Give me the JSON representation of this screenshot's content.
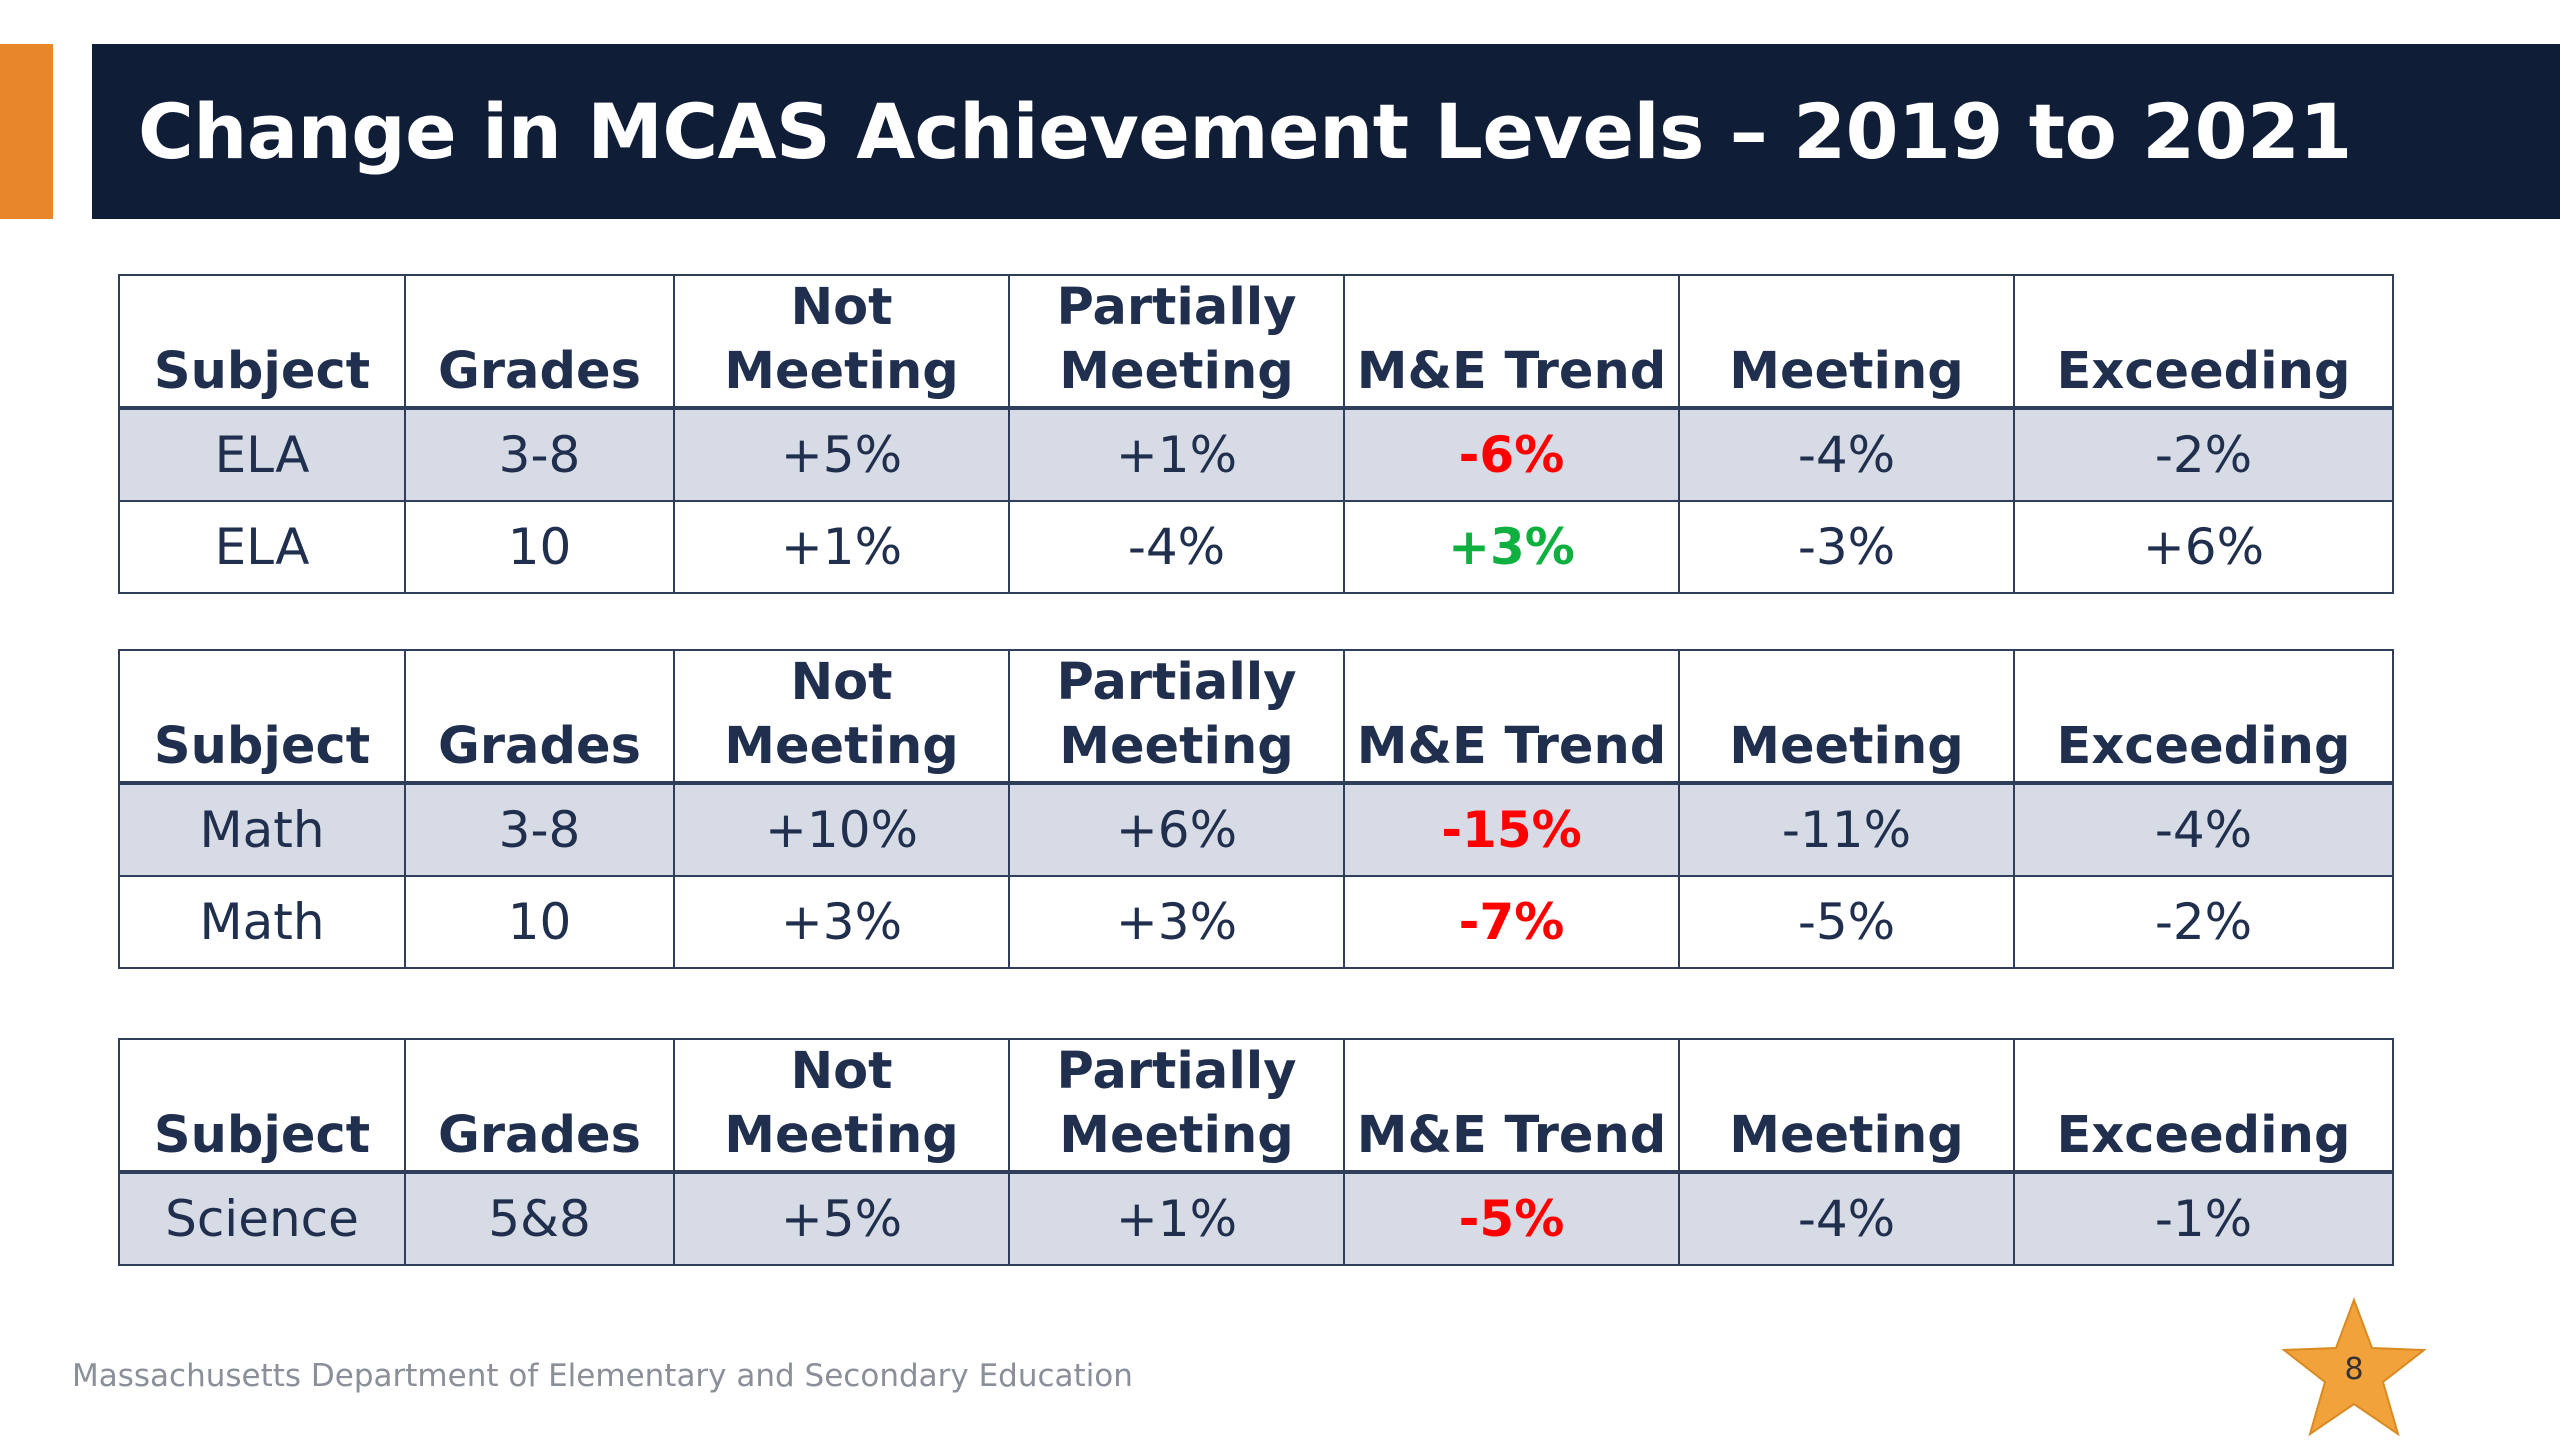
{
  "slide": {
    "title": "Change in MCAS Achievement Levels – 2019 to 2021",
    "footer": "Massachusetts Department of Elementary and Secondary Education",
    "page_number": "8",
    "colors": {
      "title_bar": "#0f1d37",
      "accent": "#e8872a",
      "row_shade": "#d6dbe5",
      "negative": "#ff0000",
      "positive": "#10b040",
      "star": "#f2a23a"
    }
  },
  "tables": [
    {
      "headers": [
        {
          "line1": "",
          "line2": "Subject"
        },
        {
          "line1": "",
          "line2": "Grades"
        },
        {
          "line1": "Not",
          "line2": "Meeting"
        },
        {
          "line1": "Partially",
          "line2": "Meeting"
        },
        {
          "line1": "",
          "line2": "M&E Trend"
        },
        {
          "line1": "",
          "line2": "Meeting"
        },
        {
          "line1": "",
          "line2": "Exceeding"
        }
      ],
      "rows": [
        {
          "subject": "ELA",
          "grades": "3-8",
          "not_meeting": "+5%",
          "partially_meeting": "+1%",
          "me_trend": "-6%",
          "me_trend_status": "negative",
          "meeting": "-4%",
          "exceeding": "-2%"
        },
        {
          "subject": "ELA",
          "grades": "10",
          "not_meeting": "+1%",
          "partially_meeting": "-4%",
          "me_trend": "+3%",
          "me_trend_status": "positive",
          "meeting": "-3%",
          "exceeding": "+6%"
        }
      ]
    },
    {
      "headers": [
        {
          "line1": "",
          "line2": "Subject"
        },
        {
          "line1": "",
          "line2": "Grades"
        },
        {
          "line1": "Not",
          "line2": "Meeting"
        },
        {
          "line1": "Partially",
          "line2": "Meeting"
        },
        {
          "line1": "",
          "line2": "M&E Trend"
        },
        {
          "line1": "",
          "line2": "Meeting"
        },
        {
          "line1": "",
          "line2": "Exceeding"
        }
      ],
      "rows": [
        {
          "subject": "Math",
          "grades": "3-8",
          "not_meeting": "+10%",
          "partially_meeting": "+6%",
          "me_trend": "-15%",
          "me_trend_status": "negative",
          "meeting": "-11%",
          "exceeding": "-4%"
        },
        {
          "subject": "Math",
          "grades": "10",
          "not_meeting": "+3%",
          "partially_meeting": "+3%",
          "me_trend": "-7%",
          "me_trend_status": "negative",
          "meeting": "-5%",
          "exceeding": "-2%"
        }
      ]
    },
    {
      "headers": [
        {
          "line1": "",
          "line2": "Subject"
        },
        {
          "line1": "",
          "line2": "Grades"
        },
        {
          "line1": "Not",
          "line2": "Meeting"
        },
        {
          "line1": "Partially",
          "line2": "Meeting"
        },
        {
          "line1": "",
          "line2": "M&E Trend"
        },
        {
          "line1": "",
          "line2": "Meeting"
        },
        {
          "line1": "",
          "line2": "Exceeding"
        }
      ],
      "rows": [
        {
          "subject": "Science",
          "grades": "5&8",
          "not_meeting": "+5%",
          "partially_meeting": "+1%",
          "me_trend": "-5%",
          "me_trend_status": "negative",
          "meeting": "-4%",
          "exceeding": "-1%"
        }
      ]
    }
  ]
}
